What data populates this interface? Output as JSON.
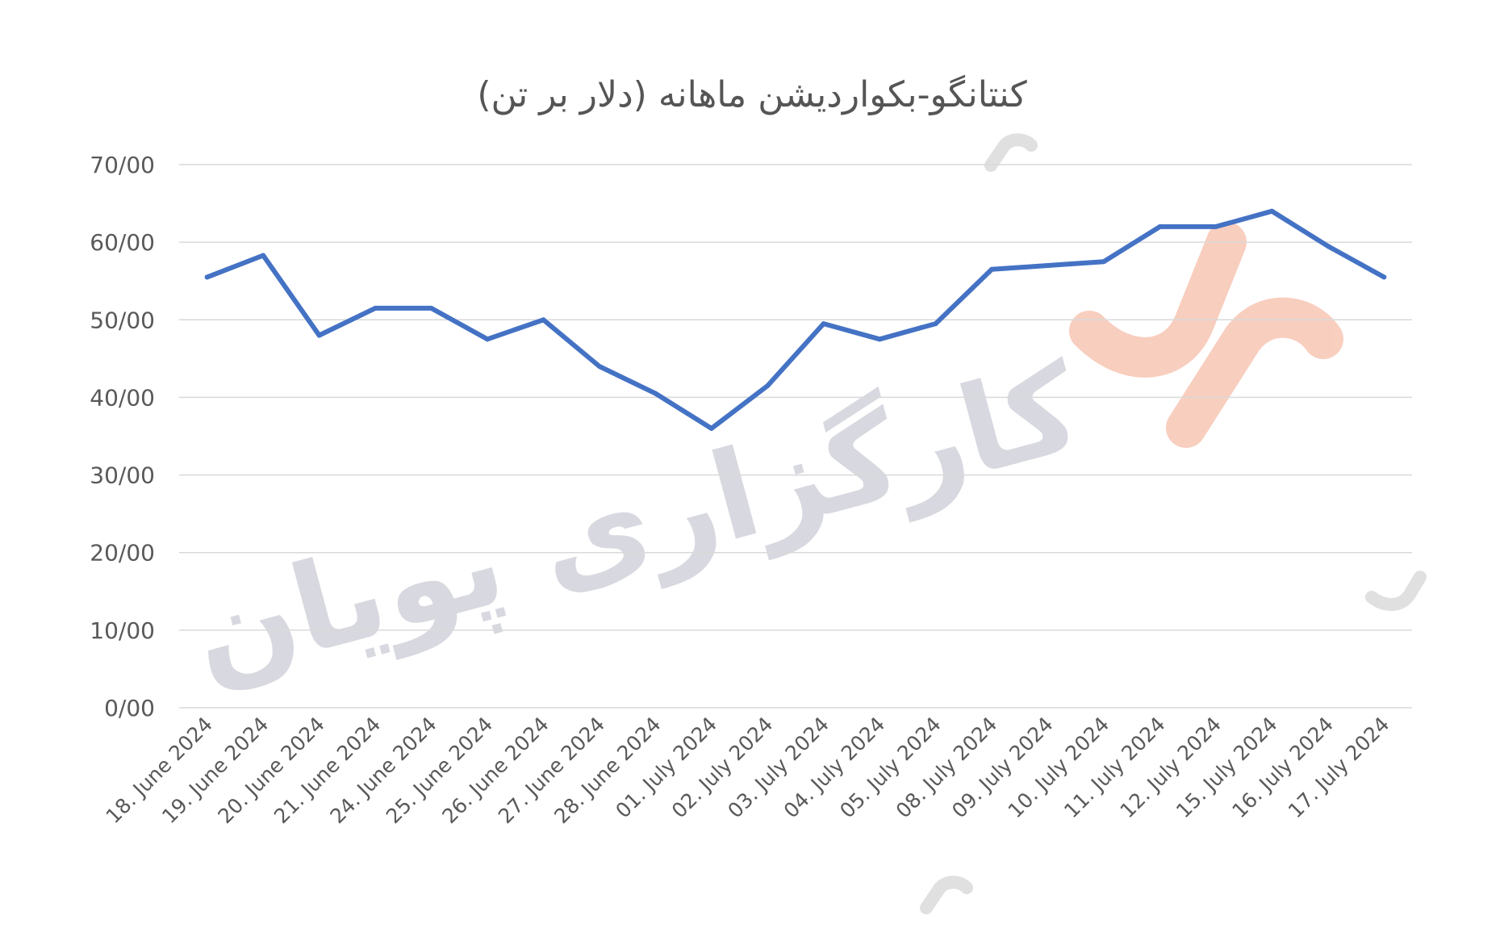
{
  "chart_data": {
    "type": "line",
    "title": "کنتانگو-بکواردیشن ماهانه (دلار بر تن)",
    "xlabel": "",
    "ylabel": "",
    "ylim": [
      0,
      70
    ],
    "y_ticks": [
      "0/00",
      "10/00",
      "20/00",
      "30/00",
      "40/00",
      "50/00",
      "60/00",
      "70/00"
    ],
    "grid": true,
    "legend": "none",
    "categories": [
      "18. June 2024",
      "19. June 2024",
      "20. June 2024",
      "21. June 2024",
      "24. June 2024",
      "25. June 2024",
      "26. June 2024",
      "27. June 2024",
      "28. June 2024",
      "01. July 2024",
      "02. July 2024",
      "03. July 2024",
      "04. July 2024",
      "05. July 2024",
      "08. July 2024",
      "09. July 2024",
      "10. July 2024",
      "11. July 2024",
      "12. July 2024",
      "15. July 2024",
      "16. July 2024",
      "17. July 2024"
    ],
    "series": [
      {
        "values": [
          55.5,
          58.3,
          48,
          51.5,
          51.5,
          47.5,
          50,
          44,
          40.5,
          36,
          41.5,
          49.5,
          47.5,
          49.5,
          56.5,
          57,
          57.5,
          62,
          62,
          64,
          59.5,
          55.5
        ],
        "color": "#4472c4"
      }
    ]
  },
  "watermark": {
    "text": "کارگزاری پویان",
    "logo_colors": [
      "#f4a78a",
      "#bdbdbd"
    ]
  }
}
